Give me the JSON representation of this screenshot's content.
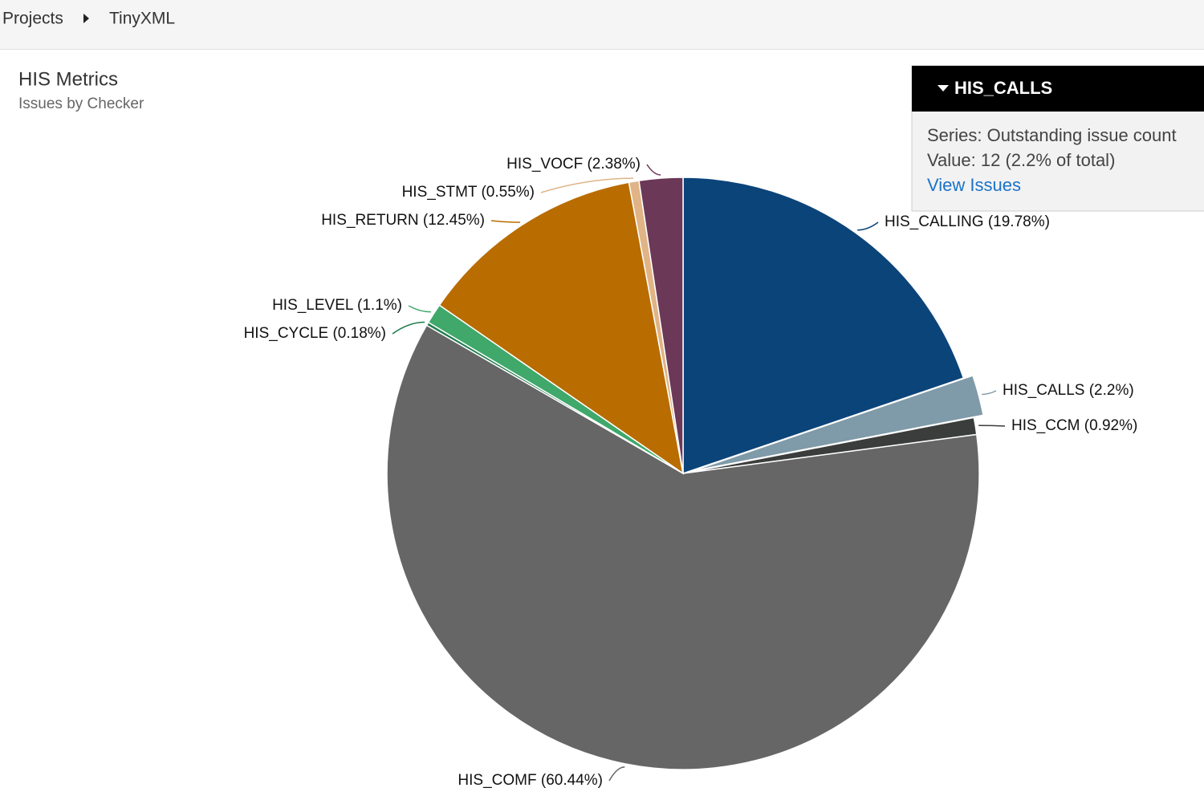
{
  "breadcrumb": [
    "Projects",
    "TinyXML"
  ],
  "chart_data": {
    "type": "pie",
    "title": "HIS Metrics",
    "subtitle": "Issues by Checker",
    "categories": [
      "HIS_CALLING",
      "HIS_CALLS",
      "HIS_CCM",
      "HIS_COMF",
      "HIS_CYCLE",
      "HIS_LEVEL",
      "HIS_RETURN",
      "HIS_STMT",
      "HIS_VOCF"
    ],
    "values": [
      19.78,
      2.2,
      0.92,
      60.44,
      0.18,
      1.1,
      12.45,
      0.55,
      2.38
    ],
    "value_labels": [
      "(19.78%)",
      "(2.2%)",
      "(0.92%)",
      "(60.44%)",
      "(0.18%)",
      "(1.1%)",
      "(12.45%)",
      "(0.55%)",
      "(2.38%)"
    ],
    "colors": [
      "#0b4479",
      "#7f9aa8",
      "#3a3d3c",
      "#666666",
      "#1e7c4b",
      "#3fa86a",
      "#b96c00",
      "#e0b486",
      "#6b3858"
    ],
    "exploded": 1
  },
  "tooltip": {
    "series": "Series: Outstanding issue count",
    "value": "Value: 12 (2.2% of total)",
    "link": "View Issues"
  }
}
